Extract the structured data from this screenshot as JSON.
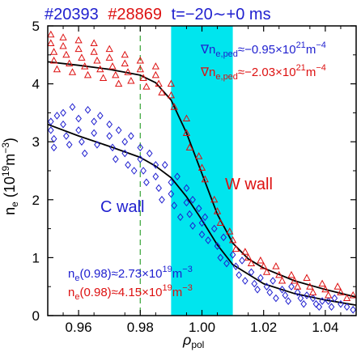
{
  "chart_data": {
    "type": "scatter",
    "title_parts": [
      {
        "text": "#20393",
        "color": "#1f1fcf"
      },
      {
        "text": "#28869",
        "color": "#dd1111"
      },
      {
        "text": "t=−20∼+0 ms",
        "color": "#1f1fcf"
      }
    ],
    "xlabel": "ρ",
    "xlabel_sub": "pol",
    "ylabel": "n",
    "ylabel_sub": "e",
    "ylabel_rest": " (10",
    "ylabel_sup1": "19",
    "ylabel_rest2": "m",
    "ylabel_sup2": "−3",
    "ylabel_close": ")",
    "xlim": [
      0.95,
      1.05
    ],
    "ylim": [
      0,
      5
    ],
    "xticks": [
      "0.96",
      "0.98",
      "1.00",
      "1.02",
      "1.04"
    ],
    "xtick_values": [
      0.96,
      0.98,
      1.0,
      1.02,
      1.04
    ],
    "yticks": [
      "0",
      "1",
      "2",
      "3",
      "4",
      "5"
    ],
    "ytick_values": [
      0,
      1,
      2,
      3,
      4,
      5
    ],
    "shaded_band": {
      "x0": 0.99,
      "x1": 1.01,
      "color": "#00e5ee"
    },
    "vline": {
      "x": 0.98,
      "color": "#44aa44",
      "style": "dashed"
    },
    "annotations": {
      "grad_c": {
        "prefix": "∇n",
        "sub": "e,ped",
        "value": "≈−0.95×10",
        "sup": "21",
        "unit": "m",
        "unit_sup": "−4",
        "color": "#1f1fcf"
      },
      "grad_w": {
        "prefix": "∇n",
        "sub": "e,ped",
        "value": "≈−2.03×10",
        "sup": "21",
        "unit": "m",
        "unit_sup": "−4",
        "color": "#dd1111"
      },
      "ne_c": {
        "prefix": "n",
        "sub": "e",
        "value": "(0.98)≈2.73×10",
        "sup": "19",
        "unit": "m",
        "unit_sup": "−3",
        "color": "#1f1fcf"
      },
      "ne_w": {
        "prefix": "n",
        "sub": "e",
        "value": "(0.98)≈4.15×10",
        "sup": "19",
        "unit": "m",
        "unit_sup": "−3",
        "color": "#dd1111"
      },
      "c_wall": {
        "text": "C wall",
        "color": "#1f1fcf"
      },
      "w_wall": {
        "text": "W wall",
        "color": "#dd1111"
      }
    },
    "series": [
      {
        "name": "C wall",
        "marker": "diamond",
        "color": "#1f1fcf",
        "fit": {
          "x": [
            0.95,
            0.96,
            0.97,
            0.98,
            0.985,
            0.99,
            0.995,
            1.0,
            1.005,
            1.01,
            1.02,
            1.03,
            1.04,
            1.05
          ],
          "y": [
            3.3,
            3.1,
            2.92,
            2.73,
            2.58,
            2.38,
            2.05,
            1.65,
            1.22,
            0.88,
            0.55,
            0.38,
            0.27,
            0.18
          ]
        },
        "points": [
          [
            0.951,
            3.35
          ],
          [
            0.951,
            3.2
          ],
          [
            0.952,
            3.05
          ],
          [
            0.952,
            2.9
          ],
          [
            0.953,
            3.45
          ],
          [
            0.955,
            3.5
          ],
          [
            0.955,
            3.3
          ],
          [
            0.956,
            3.1
          ],
          [
            0.957,
            2.95
          ],
          [
            0.958,
            3.6
          ],
          [
            0.96,
            3.4
          ],
          [
            0.96,
            3.2
          ],
          [
            0.961,
            3.0
          ],
          [
            0.962,
            2.8
          ],
          [
            0.963,
            3.55
          ],
          [
            0.965,
            3.35
          ],
          [
            0.965,
            3.15
          ],
          [
            0.966,
            2.95
          ],
          [
            0.967,
            3.45
          ],
          [
            0.97,
            3.3
          ],
          [
            0.97,
            3.1
          ],
          [
            0.971,
            2.9
          ],
          [
            0.972,
            2.7
          ],
          [
            0.973,
            3.2
          ],
          [
            0.975,
            3.0
          ],
          [
            0.975,
            2.8
          ],
          [
            0.976,
            2.6
          ],
          [
            0.977,
            3.1
          ],
          [
            0.978,
            2.5
          ],
          [
            0.98,
            2.9
          ],
          [
            0.98,
            2.7
          ],
          [
            0.981,
            2.5
          ],
          [
            0.982,
            2.3
          ],
          [
            0.983,
            2.8
          ],
          [
            0.985,
            2.6
          ],
          [
            0.985,
            2.4
          ],
          [
            0.986,
            2.2
          ],
          [
            0.987,
            2.0
          ],
          [
            0.988,
            2.6
          ],
          [
            0.99,
            2.3
          ],
          [
            0.99,
            2.1
          ],
          [
            0.991,
            1.9
          ],
          [
            0.992,
            2.4
          ],
          [
            0.993,
            1.7
          ],
          [
            0.995,
            2.2
          ],
          [
            0.995,
            1.95
          ],
          [
            0.996,
            1.75
          ],
          [
            0.997,
            2.0
          ],
          [
            0.997,
            1.55
          ],
          [
            0.999,
            1.85
          ],
          [
            1.0,
            1.6
          ],
          [
            1.0,
            1.4
          ],
          [
            1.001,
            1.7
          ],
          [
            1.002,
            1.3
          ],
          [
            1.004,
            1.5
          ],
          [
            1.005,
            1.2
          ],
          [
            1.006,
            1.0
          ],
          [
            1.007,
            1.35
          ],
          [
            1.008,
            0.9
          ],
          [
            1.01,
            1.05
          ],
          [
            1.011,
            0.85
          ],
          [
            1.012,
            0.7
          ],
          [
            1.013,
            0.95
          ],
          [
            1.014,
            0.6
          ],
          [
            1.016,
            0.75
          ],
          [
            1.017,
            0.55
          ],
          [
            1.018,
            0.45
          ],
          [
            1.019,
            0.65
          ],
          [
            1.021,
            0.5
          ],
          [
            1.022,
            0.4
          ],
          [
            1.023,
            0.6
          ],
          [
            1.024,
            0.3
          ],
          [
            1.026,
            0.45
          ],
          [
            1.027,
            0.35
          ],
          [
            1.028,
            0.25
          ],
          [
            1.029,
            0.5
          ],
          [
            1.031,
            0.4
          ],
          [
            1.032,
            0.3
          ],
          [
            1.033,
            0.2
          ],
          [
            1.034,
            0.35
          ],
          [
            1.036,
            0.3
          ],
          [
            1.037,
            0.2
          ],
          [
            1.038,
            0.15
          ],
          [
            1.039,
            0.25
          ],
          [
            1.041,
            0.25
          ],
          [
            1.042,
            0.15
          ],
          [
            1.043,
            0.3
          ],
          [
            1.045,
            0.2
          ],
          [
            1.047,
            0.15
          ],
          [
            1.049,
            0.1
          ]
        ]
      },
      {
        "name": "W wall",
        "marker": "triangle",
        "color": "#dd1111",
        "fit": {
          "x": [
            0.95,
            0.96,
            0.97,
            0.975,
            0.98,
            0.985,
            0.99,
            0.995,
            1.0,
            1.005,
            1.01,
            1.015,
            1.02,
            1.03,
            1.04,
            1.05
          ],
          "y": [
            4.38,
            4.32,
            4.25,
            4.2,
            4.15,
            4.02,
            3.72,
            3.15,
            2.45,
            1.75,
            1.25,
            0.98,
            0.82,
            0.6,
            0.45,
            0.32
          ]
        },
        "points": [
          [
            0.951,
            4.85
          ],
          [
            0.951,
            4.7
          ],
          [
            0.952,
            4.55
          ],
          [
            0.952,
            4.4
          ],
          [
            0.953,
            4.25
          ],
          [
            0.955,
            4.8
          ],
          [
            0.955,
            4.65
          ],
          [
            0.956,
            4.5
          ],
          [
            0.957,
            4.35
          ],
          [
            0.958,
            4.2
          ],
          [
            0.96,
            4.75
          ],
          [
            0.96,
            4.6
          ],
          [
            0.961,
            4.45
          ],
          [
            0.962,
            4.3
          ],
          [
            0.963,
            4.15
          ],
          [
            0.965,
            4.7
          ],
          [
            0.965,
            4.55
          ],
          [
            0.966,
            4.4
          ],
          [
            0.967,
            4.25
          ],
          [
            0.968,
            4.1
          ],
          [
            0.97,
            4.6
          ],
          [
            0.97,
            4.45
          ],
          [
            0.971,
            4.3
          ],
          [
            0.972,
            4.15
          ],
          [
            0.973,
            4.0
          ],
          [
            0.975,
            4.5
          ],
          [
            0.975,
            4.35
          ],
          [
            0.976,
            4.2
          ],
          [
            0.977,
            4.05
          ],
          [
            0.98,
            4.4
          ],
          [
            0.98,
            4.25
          ],
          [
            0.981,
            4.1
          ],
          [
            0.982,
            3.95
          ],
          [
            0.985,
            4.3
          ],
          [
            0.985,
            4.15
          ],
          [
            0.986,
            4.0
          ],
          [
            0.987,
            3.85
          ],
          [
            0.99,
            4.0
          ],
          [
            0.99,
            3.8
          ],
          [
            0.991,
            3.6
          ],
          [
            0.995,
            3.4
          ],
          [
            0.995,
            3.15
          ],
          [
            0.996,
            2.9
          ],
          [
            0.999,
            2.75
          ],
          [
            1.0,
            2.55
          ],
          [
            1.001,
            2.35
          ],
          [
            1.004,
            2.0
          ],
          [
            1.005,
            1.8
          ],
          [
            1.006,
            1.6
          ],
          [
            1.009,
            1.45
          ],
          [
            1.01,
            1.3
          ],
          [
            1.011,
            1.15
          ],
          [
            1.014,
            1.1
          ],
          [
            1.015,
            1.0
          ],
          [
            1.016,
            0.9
          ],
          [
            1.019,
            0.95
          ],
          [
            1.02,
            0.85
          ],
          [
            1.021,
            0.75
          ],
          [
            1.024,
            0.85
          ],
          [
            1.025,
            0.7
          ],
          [
            1.026,
            0.6
          ],
          [
            1.029,
            0.7
          ],
          [
            1.03,
            0.6
          ],
          [
            1.031,
            0.5
          ],
          [
            1.034,
            0.65
          ],
          [
            1.035,
            0.5
          ],
          [
            1.036,
            0.4
          ],
          [
            1.039,
            0.55
          ],
          [
            1.04,
            0.45
          ],
          [
            1.041,
            0.35
          ],
          [
            1.044,
            0.5
          ],
          [
            1.045,
            0.4
          ],
          [
            1.047,
            0.3
          ],
          [
            1.049,
            0.35
          ]
        ]
      }
    ]
  }
}
